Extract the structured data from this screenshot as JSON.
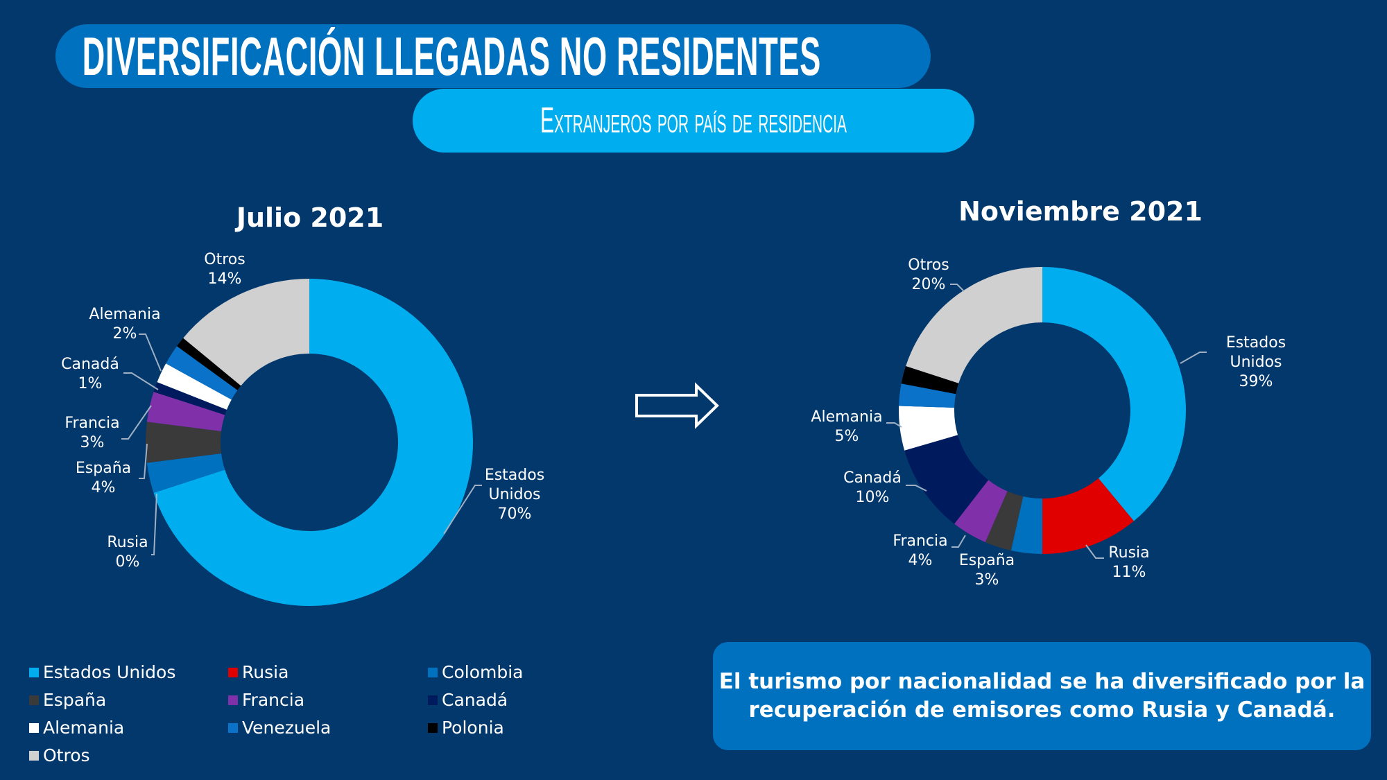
{
  "header": {
    "title": "DIVERSIFICACIÓN LLEGADAS NO RESIDENTES",
    "subtitle": "Extranjeros por país de residencia"
  },
  "colors": {
    "background": "#03386d",
    "title_pill": "#0071bf",
    "subtitle_pill": "#00aeef"
  },
  "chart_data": [
    {
      "type": "pie",
      "donut": true,
      "title": "Julio 2021",
      "categories": [
        "Estados Unidos",
        "Rusia",
        "Colombia",
        "España",
        "Francia",
        "Canadá",
        "Alemania",
        "Venezuela",
        "Polonia",
        "Otros"
      ],
      "values": [
        70,
        0,
        3,
        4,
        3,
        1,
        2,
        2,
        1,
        14
      ],
      "labels": {
        "Estados Unidos": "Estados Unidos 70%",
        "Rusia": "0%",
        "España": "4%",
        "Francia": "3%",
        "Canadá": "1%",
        "Alemania": "2%",
        "Otros": "14%"
      }
    },
    {
      "type": "pie",
      "donut": true,
      "title": "Noviembre 2021",
      "categories": [
        "Estados Unidos",
        "Rusia",
        "Colombia",
        "España",
        "Francia",
        "Canadá",
        "Alemania",
        "Venezuela",
        "Polonia",
        "Otros"
      ],
      "values": [
        39,
        11,
        3.5,
        3,
        4,
        10,
        5,
        2.5,
        2,
        20
      ],
      "labels": {
        "Estados Unidos": "39%",
        "Rusia": "11%",
        "España": "3%",
        "Francia": "4%",
        "Canadá": "10%",
        "Alemania": "5%",
        "Otros": "20%"
      }
    }
  ],
  "series_colors": {
    "Estados Unidos": "#00aeef",
    "Rusia": "#e00000",
    "Colombia": "#0071bf",
    "España": "#3a3a3a",
    "Francia": "#8030a8",
    "Canadá": "#001a5e",
    "Alemania": "#ffffff",
    "Venezuela": "#0a72c8",
    "Polonia": "#000000",
    "Otros": "#d0d0d0"
  },
  "left_labels": [
    {
      "name": "Otros",
      "pct": "14%"
    },
    {
      "name": "Alemania",
      "pct": "2%"
    },
    {
      "name": "Canadá",
      "pct": "1%"
    },
    {
      "name": "Francia",
      "pct": "3%"
    },
    {
      "name": "España",
      "pct": "4%"
    },
    {
      "name": "Rusia",
      "pct": "0%"
    },
    {
      "name": "Estados",
      "name2": "Unidos",
      "pct": "70%"
    }
  ],
  "right_labels": [
    {
      "name": "Otros",
      "pct": "20%"
    },
    {
      "name": "Estados",
      "name2": "Unidos",
      "pct": "39%"
    },
    {
      "name": "Alemania",
      "pct": "5%"
    },
    {
      "name": "Canadá",
      "pct": "10%"
    },
    {
      "name": "Francia",
      "pct": "4%"
    },
    {
      "name": "España",
      "pct": "3%"
    },
    {
      "name": "Rusia",
      "pct": "11%"
    }
  ],
  "legend": [
    "Estados Unidos",
    "Rusia",
    "Colombia",
    "España",
    "Francia",
    "Canadá",
    "Alemania",
    "Venezuela",
    "Polonia",
    "Otros"
  ],
  "arrow_icon": "right-arrow-outline",
  "note": "El turismo por nacionalidad se ha diversificado por la recuperación de emisores como Rusia y Canadá."
}
